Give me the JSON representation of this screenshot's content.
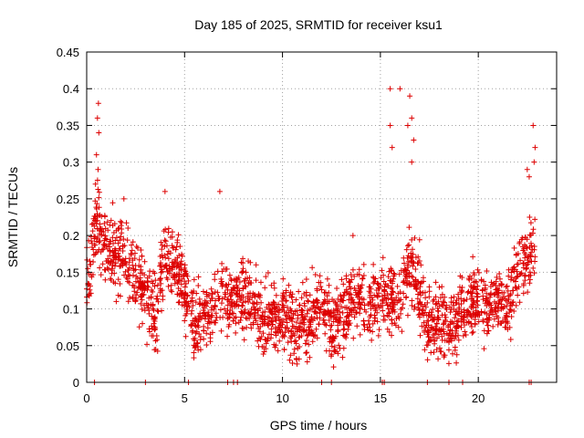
{
  "chart_data": {
    "type": "scatter",
    "title": "Day 185 of 2025, SRMTID for receiver ksu1",
    "xlabel": "GPS time / hours",
    "ylabel": "SRMTID / TECUs",
    "xlim": [
      0,
      24
    ],
    "ylim": [
      0,
      0.45
    ],
    "x_ticks": [
      0,
      5,
      10,
      15,
      20
    ],
    "x_tick_labels": [
      "0",
      "5",
      "10",
      "15",
      "20"
    ],
    "y_ticks": [
      0,
      0.05,
      0.1,
      0.15,
      0.2,
      0.25,
      0.3,
      0.35,
      0.4,
      0.45
    ],
    "y_tick_labels": [
      "0",
      "0.05",
      "0.1",
      "0.15",
      "0.2",
      "0.25",
      "0.3",
      "0.35",
      "0.4",
      "0.45"
    ],
    "grid": true,
    "marker": "+",
    "color": "#dd0000",
    "trend": [
      [
        0.0,
        0.14
      ],
      [
        0.3,
        0.19
      ],
      [
        0.5,
        0.22
      ],
      [
        1.0,
        0.18
      ],
      [
        1.5,
        0.17
      ],
      [
        2.0,
        0.18
      ],
      [
        2.5,
        0.14
      ],
      [
        3.0,
        0.12
      ],
      [
        3.5,
        0.09
      ],
      [
        4.0,
        0.17
      ],
      [
        4.5,
        0.16
      ],
      [
        5.0,
        0.13
      ],
      [
        5.5,
        0.08
      ],
      [
        6.0,
        0.09
      ],
      [
        6.5,
        0.11
      ],
      [
        7.0,
        0.12
      ],
      [
        7.5,
        0.11
      ],
      [
        8.0,
        0.12
      ],
      [
        8.5,
        0.11
      ],
      [
        9.0,
        0.08
      ],
      [
        9.5,
        0.08
      ],
      [
        10.0,
        0.1
      ],
      [
        10.5,
        0.08
      ],
      [
        11.0,
        0.08
      ],
      [
        11.5,
        0.09
      ],
      [
        12.0,
        0.11
      ],
      [
        12.5,
        0.08
      ],
      [
        13.0,
        0.09
      ],
      [
        13.5,
        0.11
      ],
      [
        14.0,
        0.11
      ],
      [
        14.5,
        0.1
      ],
      [
        15.0,
        0.12
      ],
      [
        15.5,
        0.12
      ],
      [
        16.0,
        0.11
      ],
      [
        16.5,
        0.16
      ],
      [
        17.0,
        0.12
      ],
      [
        17.5,
        0.08
      ],
      [
        18.0,
        0.08
      ],
      [
        18.5,
        0.07
      ],
      [
        19.0,
        0.09
      ],
      [
        19.5,
        0.11
      ],
      [
        20.0,
        0.11
      ],
      [
        20.5,
        0.1
      ],
      [
        21.0,
        0.11
      ],
      [
        21.5,
        0.1
      ],
      [
        22.0,
        0.15
      ],
      [
        22.5,
        0.17
      ],
      [
        22.9,
        0.17
      ]
    ],
    "spread": 0.035,
    "outliers": [
      [
        0.6,
        0.38
      ],
      [
        0.55,
        0.36
      ],
      [
        0.62,
        0.34
      ],
      [
        0.5,
        0.31
      ],
      [
        0.58,
        0.29
      ],
      [
        0.45,
        0.27
      ],
      [
        4.0,
        0.26
      ],
      [
        6.8,
        0.26
      ],
      [
        16.0,
        0.4
      ],
      [
        16.4,
        0.35
      ],
      [
        16.5,
        0.39
      ],
      [
        16.6,
        0.36
      ],
      [
        15.5,
        0.4
      ],
      [
        15.5,
        0.35
      ],
      [
        15.6,
        0.32
      ],
      [
        16.6,
        0.3
      ],
      [
        16.7,
        0.33
      ],
      [
        22.8,
        0.35
      ],
      [
        22.9,
        0.32
      ],
      [
        22.85,
        0.3
      ],
      [
        22.6,
        0.28
      ],
      [
        22.5,
        0.29
      ],
      [
        1.9,
        0.25
      ],
      [
        13.6,
        0.2
      ]
    ],
    "zero_points": [
      0.4,
      3.0,
      5.2,
      7.2,
      7.5,
      7.7,
      12.0,
      12.5,
      15.1,
      15.2,
      17.4,
      18.5,
      19.2,
      22.6,
      22.7
    ]
  }
}
